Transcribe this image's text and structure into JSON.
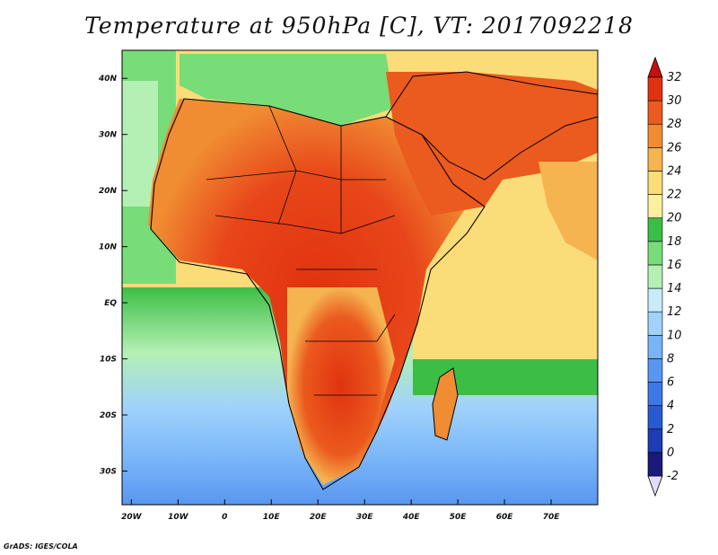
{
  "title": "Temperature at 950hPa [C], VT: 2017092218",
  "credit": "GrADS: IGES/COLA",
  "map": {
    "lon_range": [
      -22,
      80
    ],
    "lat_range": [
      -36,
      45
    ],
    "x_ticks": [
      {
        "v": -20,
        "t": "20W"
      },
      {
        "v": -10,
        "t": "10W"
      },
      {
        "v": 0,
        "t": "0"
      },
      {
        "v": 10,
        "t": "10E"
      },
      {
        "v": 20,
        "t": "20E"
      },
      {
        "v": 30,
        "t": "30E"
      },
      {
        "v": 40,
        "t": "40E"
      },
      {
        "v": 50,
        "t": "50E"
      },
      {
        "v": 60,
        "t": "60E"
      },
      {
        "v": 70,
        "t": "70E"
      }
    ],
    "y_ticks": [
      {
        "v": 40,
        "t": "40N"
      },
      {
        "v": 30,
        "t": "30N"
      },
      {
        "v": 20,
        "t": "20N"
      },
      {
        "v": 10,
        "t": "10N"
      },
      {
        "v": 0,
        "t": "EQ"
      },
      {
        "v": -10,
        "t": "10S"
      },
      {
        "v": -20,
        "t": "20S"
      },
      {
        "v": -30,
        "t": "30S"
      }
    ]
  },
  "colorbar": {
    "levels": [
      "-2",
      "0",
      "2",
      "4",
      "6",
      "8",
      "10",
      "12",
      "14",
      "16",
      "18",
      "20",
      "22",
      "24",
      "26",
      "28",
      "30",
      "32"
    ],
    "colors": [
      "#1a1a7a",
      "#1e3cb4",
      "#2a5ad2",
      "#3c78e6",
      "#5a96f0",
      "#78b4f8",
      "#a0d2fa",
      "#c8ebfa",
      "#b4f0b4",
      "#78dc78",
      "#3cbe46",
      "#fff0a0",
      "#fadc78",
      "#f5b450",
      "#f08c32",
      "#eb5a1e",
      "#e1320f"
    ],
    "low_color": "#e0dcfa",
    "high_color": "#c80f0a"
  }
}
